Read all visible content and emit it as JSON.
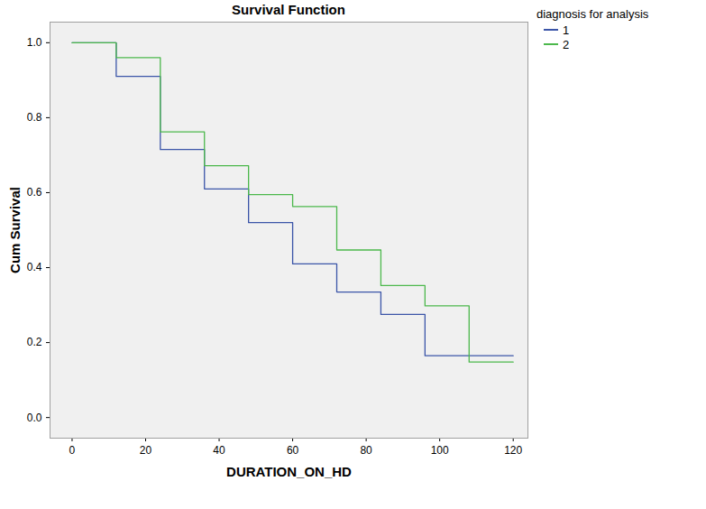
{
  "chart_data": {
    "type": "line",
    "title": "Survival Function",
    "x_label": "DURATION_ON_HD",
    "y_label": "Cum Survival",
    "legend_title": "diagnosis for analysis",
    "x": [
      0,
      12,
      24,
      36,
      48,
      60,
      72,
      84,
      96,
      108,
      120
    ],
    "series": [
      {
        "name": "1",
        "color": "#3b55a8",
        "line_style": "step",
        "values": [
          1.0,
          0.91,
          0.715,
          0.61,
          0.52,
          0.41,
          0.335,
          0.275,
          0.165,
          0.165,
          0.165
        ]
      },
      {
        "name": "2",
        "color": "#4cb84c",
        "line_style": "step",
        "values": [
          1.0,
          0.96,
          0.762,
          0.672,
          0.595,
          0.563,
          0.447,
          0.352,
          0.298,
          0.148,
          0.148
        ]
      }
    ],
    "xlim": [
      -6,
      124
    ],
    "xticks": [
      0,
      20,
      40,
      60,
      80,
      100,
      120
    ],
    "ylim": [
      -0.055,
      1.055
    ],
    "yticks": [
      {
        "value": 0,
        "label": "0.0"
      },
      0.2,
      0.4,
      0.6,
      0.8,
      {
        "value": 1,
        "label": "1.0"
      }
    ],
    "grid": false,
    "legend": "right"
  }
}
